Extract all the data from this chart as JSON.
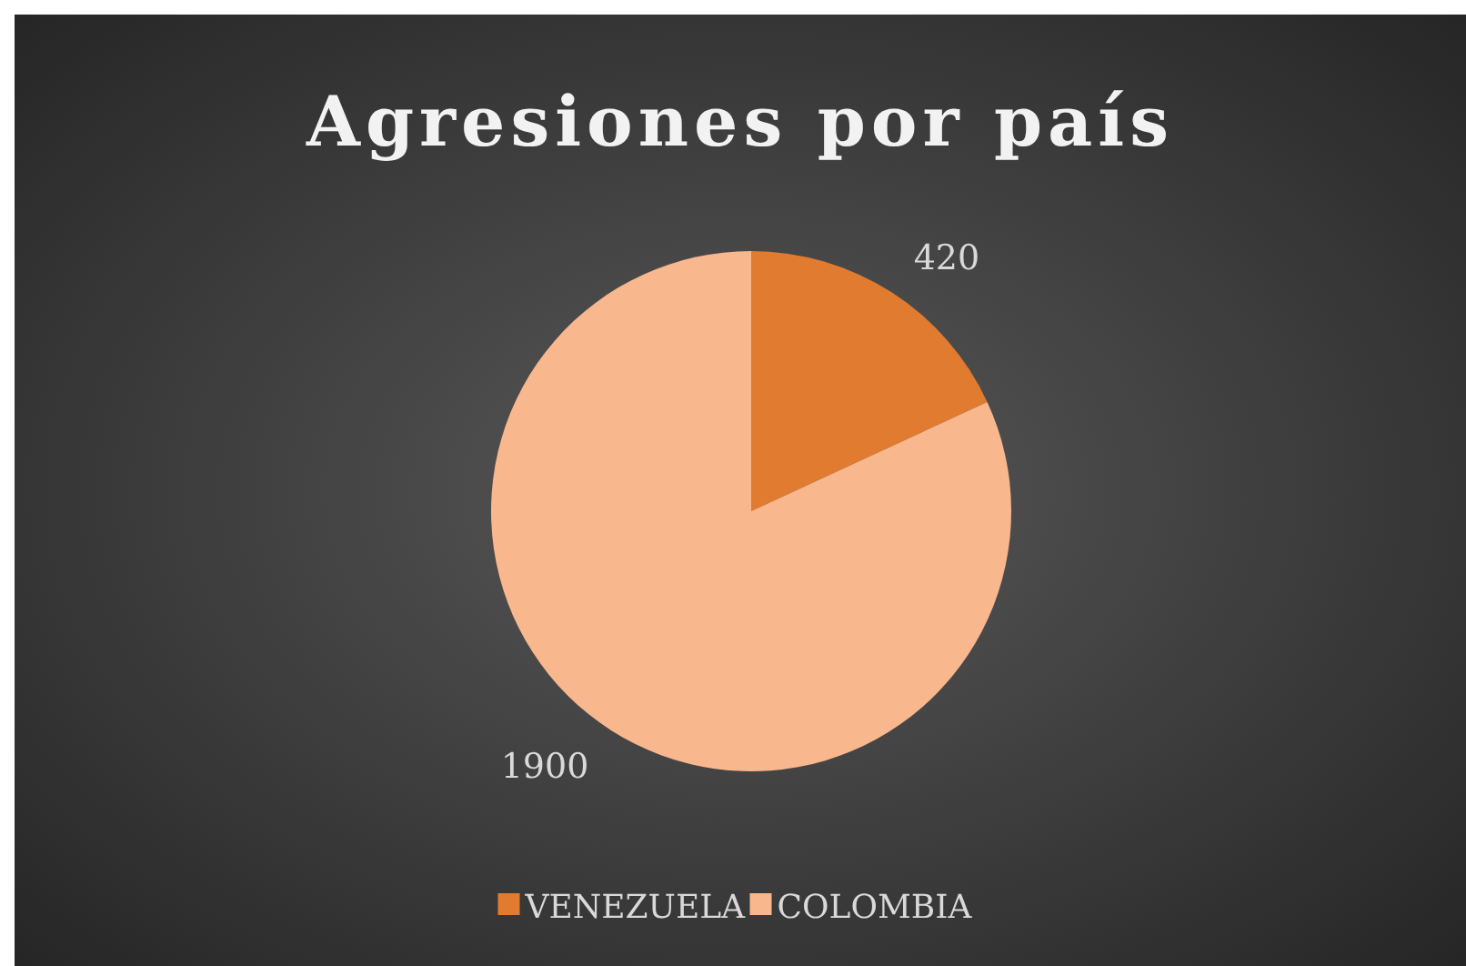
{
  "chart_data": {
    "type": "pie",
    "title": "Agresiones por país",
    "categories": [
      "VENEZUELA",
      "COLOMBIA"
    ],
    "values": [
      420,
      1900
    ],
    "colors": [
      "#e07b2f",
      "#f9b78e"
    ],
    "data_labels": true,
    "legend": "bottom"
  }
}
